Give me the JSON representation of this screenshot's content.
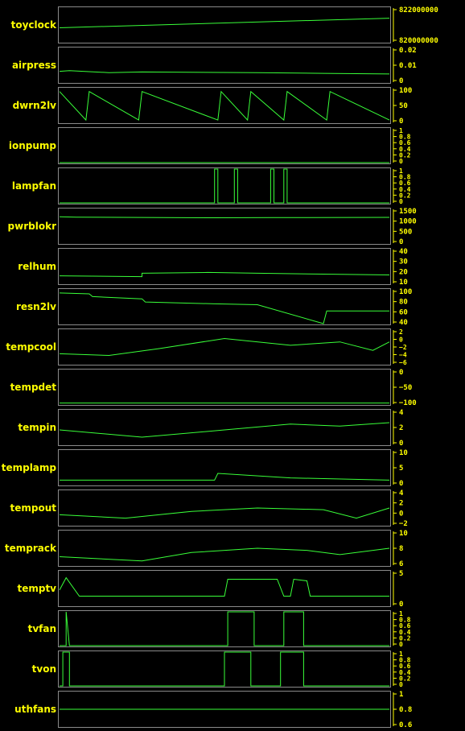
{
  "chart_data": [
    {
      "type": "line",
      "ylabel": "toyclock",
      "ticks": [
        "822000000",
        "820000000"
      ],
      "ylim": [
        818000000,
        824000000
      ],
      "series": [
        {
          "trace": [
            [
              0,
              820500000
            ],
            [
              1,
              822200000
            ]
          ]
        }
      ]
    },
    {
      "type": "line",
      "ylabel": "airpress",
      "ticks": [
        "0.02",
        "0.01",
        "0"
      ],
      "ylim": [
        0,
        0.025
      ],
      "series": [
        {
          "trace": [
            [
              0,
              0.008
            ],
            [
              0.03,
              0.0085
            ],
            [
              0.15,
              0.007
            ],
            [
              0.25,
              0.0075
            ],
            [
              0.6,
              0.007
            ],
            [
              0.8,
              0.0065
            ],
            [
              1,
              0.006
            ]
          ]
        }
      ]
    },
    {
      "type": "line",
      "ylabel": "dwrn2lv",
      "ticks": [
        "100",
        "50",
        "0"
      ],
      "ylim": [
        -5,
        110
      ],
      "series": [
        {
          "trace": [
            [
              0,
              100
            ],
            [
              0.08,
              3
            ],
            [
              0.09,
              100
            ],
            [
              0.24,
              3
            ],
            [
              0.25,
              100
            ],
            [
              0.48,
              3
            ],
            [
              0.49,
              100
            ],
            [
              0.57,
              3
            ],
            [
              0.58,
              100
            ],
            [
              0.68,
              3
            ],
            [
              0.69,
              100
            ],
            [
              0.81,
              3
            ],
            [
              0.82,
              100
            ],
            [
              1,
              3
            ]
          ]
        }
      ]
    },
    {
      "type": "line",
      "ylabel": "ionpump",
      "ticks": [
        "1",
        "0.8",
        "0.6",
        "0.4",
        "0.2",
        "0"
      ],
      "ylim": [
        0,
        1
      ],
      "series": [
        {
          "trace": [
            [
              0,
              0
            ],
            [
              1,
              0
            ]
          ]
        }
      ]
    },
    {
      "type": "line",
      "ylabel": "lampfan",
      "ticks": [
        "1",
        "0.8",
        "0.6",
        "0.4",
        "0.2",
        "0"
      ],
      "ylim": [
        0,
        1
      ],
      "series": [
        {
          "trace": [
            [
              0,
              0
            ],
            [
              0.47,
              0
            ],
            [
              0.47,
              1
            ],
            [
              0.48,
              1
            ],
            [
              0.48,
              0
            ],
            [
              0.53,
              0
            ],
            [
              0.53,
              1
            ],
            [
              0.54,
              1
            ],
            [
              0.54,
              0
            ],
            [
              0.64,
              0
            ],
            [
              0.64,
              1
            ],
            [
              0.65,
              1
            ],
            [
              0.65,
              0
            ],
            [
              0.68,
              0
            ],
            [
              0.68,
              1
            ],
            [
              0.69,
              1
            ],
            [
              0.69,
              0
            ],
            [
              1,
              0
            ]
          ]
        }
      ]
    },
    {
      "type": "line",
      "ylabel": "pwrblokr",
      "ticks": [
        "1500",
        "1000",
        "500",
        "0"
      ],
      "ylim": [
        0,
        1800
      ],
      "series": [
        {
          "trace": [
            [
              0,
              1400
            ],
            [
              0.05,
              1380
            ],
            [
              0.47,
              1350
            ],
            [
              0.65,
              1360
            ],
            [
              1,
              1370
            ]
          ]
        }
      ]
    },
    {
      "type": "line",
      "ylabel": "relhum",
      "ticks": [
        "40",
        "30",
        "20",
        "10"
      ],
      "ylim": [
        5,
        45
      ],
      "series": [
        {
          "trace": [
            [
              0,
              14
            ],
            [
              0.25,
              13
            ],
            [
              0.25,
              17
            ],
            [
              0.45,
              18
            ],
            [
              0.6,
              17
            ],
            [
              0.8,
              16
            ],
            [
              1,
              15
            ]
          ]
        }
      ]
    },
    {
      "type": "line",
      "ylabel": "resn2lv",
      "ticks": [
        "100",
        "80",
        "60",
        "40"
      ],
      "ylim": [
        30,
        105
      ],
      "series": [
        {
          "trace": [
            [
              0,
              98
            ],
            [
              0.09,
              96
            ],
            [
              0.1,
              90
            ],
            [
              0.25,
              85
            ],
            [
              0.26,
              78
            ],
            [
              0.47,
              74
            ],
            [
              0.6,
              72
            ],
            [
              0.8,
              30
            ],
            [
              0.81,
              58
            ],
            [
              0.95,
              58
            ],
            [
              1,
              58
            ]
          ]
        }
      ]
    },
    {
      "type": "line",
      "ylabel": "tempcool",
      "ticks": [
        "2",
        "0",
        "−2",
        "−4",
        "−6"
      ],
      "ylim": [
        -7,
        3
      ],
      "series": [
        {
          "trace": [
            [
              0,
              -4
            ],
            [
              0.15,
              -4.5
            ],
            [
              0.3,
              -2.5
            ],
            [
              0.5,
              0.5
            ],
            [
              0.7,
              -1.5
            ],
            [
              0.85,
              -0.5
            ],
            [
              0.95,
              -3
            ],
            [
              1,
              -0.5
            ]
          ]
        }
      ]
    },
    {
      "type": "line",
      "ylabel": "tempdet",
      "ticks": [
        "0",
        "−50",
        "−100"
      ],
      "ylim": [
        -125,
        20
      ],
      "series": [
        {
          "trace": [
            [
              0,
              -120
            ],
            [
              1,
              -120
            ]
          ]
        }
      ]
    },
    {
      "type": "line",
      "ylabel": "tempin",
      "ticks": [
        "4",
        "2",
        "0"
      ],
      "ylim": [
        -1,
        6
      ],
      "series": [
        {
          "trace": [
            [
              0,
              2
            ],
            [
              0.25,
              0.5
            ],
            [
              0.5,
              2
            ],
            [
              0.7,
              3.2
            ],
            [
              0.85,
              2.8
            ],
            [
              1,
              3.5
            ]
          ]
        }
      ]
    },
    {
      "type": "line",
      "ylabel": "templamp",
      "ticks": [
        "10",
        "5",
        "0"
      ],
      "ylim": [
        -3,
        12
      ],
      "series": [
        {
          "trace": [
            [
              0,
              -1
            ],
            [
              0.2,
              -1
            ],
            [
              0.47,
              -1
            ],
            [
              0.48,
              2
            ],
            [
              0.7,
              0
            ],
            [
              1,
              -1
            ]
          ]
        }
      ]
    },
    {
      "type": "line",
      "ylabel": "tempout",
      "ticks": [
        "4",
        "2",
        "0",
        "−2"
      ],
      "ylim": [
        -4,
        6
      ],
      "series": [
        {
          "trace": [
            [
              0,
              -1
            ],
            [
              0.2,
              -2
            ],
            [
              0.4,
              0
            ],
            [
              0.6,
              1
            ],
            [
              0.8,
              0.5
            ],
            [
              0.9,
              -2
            ],
            [
              1,
              1
            ]
          ]
        }
      ]
    },
    {
      "type": "line",
      "ylabel": "temprack",
      "ticks": [
        "10",
        "8",
        "6"
      ],
      "ylim": [
        4,
        12
      ],
      "series": [
        {
          "trace": [
            [
              0,
              6
            ],
            [
              0.25,
              5
            ],
            [
              0.4,
              7
            ],
            [
              0.6,
              8
            ],
            [
              0.75,
              7.5
            ],
            [
              0.85,
              6.5
            ],
            [
              1,
              8
            ]
          ]
        }
      ]
    },
    {
      "type": "line",
      "ylabel": "temptv",
      "ticks": [
        "5",
        "0"
      ],
      "ylim": [
        -3,
        8
      ],
      "series": [
        {
          "trace": [
            [
              0,
              2
            ],
            [
              0.02,
              6
            ],
            [
              0.06,
              0
            ],
            [
              0.5,
              0
            ],
            [
              0.51,
              5.5
            ],
            [
              0.66,
              5.5
            ],
            [
              0.68,
              0
            ],
            [
              0.7,
              0
            ],
            [
              0.71,
              5.5
            ],
            [
              0.75,
              5
            ],
            [
              0.76,
              0
            ],
            [
              1,
              0
            ]
          ]
        }
      ]
    },
    {
      "type": "line",
      "ylabel": "tvfan",
      "ticks": [
        "1",
        "0.8",
        "0.6",
        "0.4",
        "0.2",
        "0"
      ],
      "ylim": [
        0,
        1
      ],
      "series": [
        {
          "trace": [
            [
              0,
              0
            ],
            [
              0.02,
              0
            ],
            [
              0.02,
              1
            ],
            [
              0.03,
              0
            ],
            [
              0.51,
              0
            ],
            [
              0.51,
              1
            ],
            [
              0.59,
              1
            ],
            [
              0.59,
              0
            ],
            [
              0.68,
              0
            ],
            [
              0.68,
              1
            ],
            [
              0.74,
              1
            ],
            [
              0.74,
              0
            ],
            [
              1,
              0
            ]
          ]
        }
      ]
    },
    {
      "type": "line",
      "ylabel": "tvon",
      "ticks": [
        "1",
        "0.8",
        "0.6",
        "0.4",
        "0.2",
        "0"
      ],
      "ylim": [
        0,
        1
      ],
      "series": [
        {
          "trace": [
            [
              0,
              0
            ],
            [
              0.01,
              0
            ],
            [
              0.01,
              1
            ],
            [
              0.03,
              1
            ],
            [
              0.03,
              0
            ],
            [
              0.5,
              0
            ],
            [
              0.5,
              1
            ],
            [
              0.58,
              1
            ],
            [
              0.58,
              0
            ],
            [
              0.67,
              0
            ],
            [
              0.67,
              1
            ],
            [
              0.74,
              1
            ],
            [
              0.74,
              0
            ],
            [
              1,
              0
            ]
          ]
        }
      ]
    },
    {
      "type": "line",
      "ylabel": "uthfans",
      "ticks": [
        "1",
        "0.8",
        "0.6"
      ],
      "ylim": [
        0,
        1
      ],
      "series": [
        {
          "trace": [
            [
              0,
              0.5
            ],
            [
              1,
              0.5
            ]
          ]
        }
      ]
    }
  ],
  "colors": {
    "line": "#39ff39",
    "label": "#ffff00",
    "frame": "#8a8a8a"
  }
}
